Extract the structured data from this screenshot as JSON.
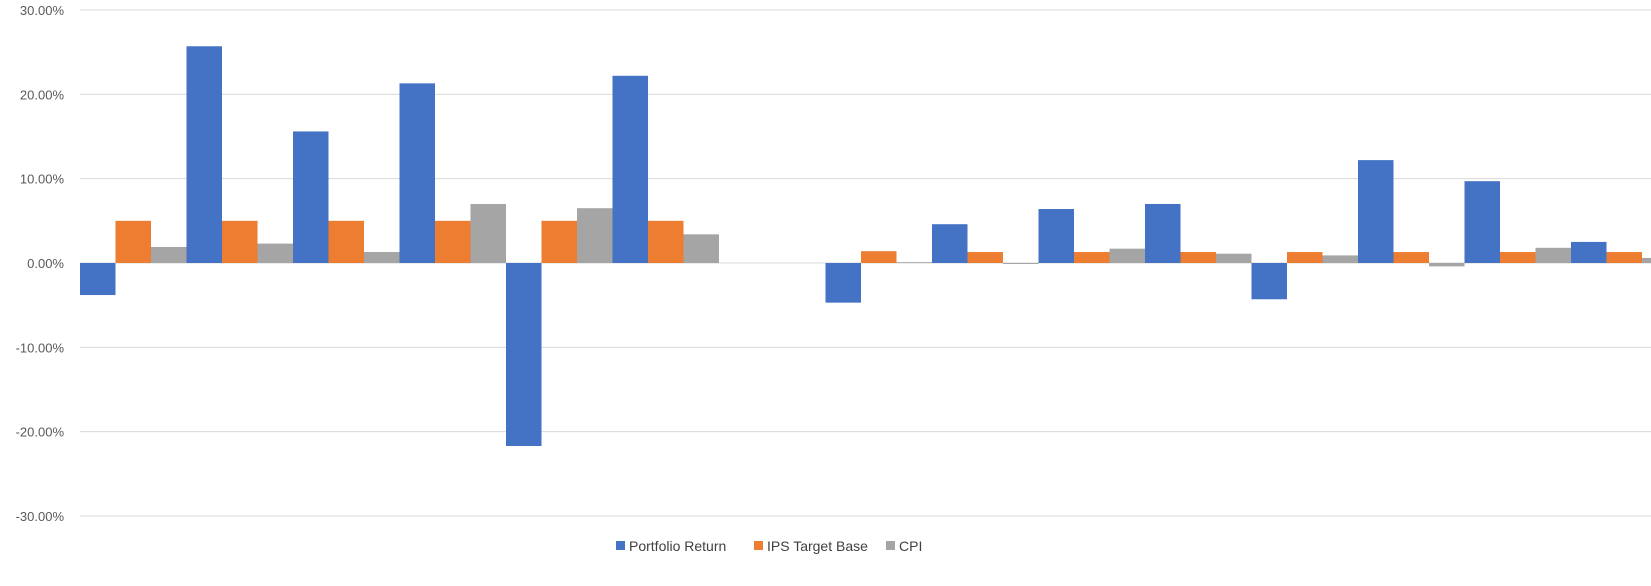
{
  "chart_data": {
    "type": "bar",
    "title": "",
    "xlabel": "",
    "ylabel": "",
    "ylim": [
      -0.3,
      0.3
    ],
    "yticks": [
      0.3,
      0.2,
      0.1,
      0.0,
      -0.1,
      -0.2,
      -0.3
    ],
    "ytick_labels": [
      "30.00%",
      "20.00%",
      "10.00%",
      "0.00%",
      "-10.00%",
      "-20.00%",
      "-30.00%"
    ],
    "grid": true,
    "legend_position": "bottom",
    "categories_count": 15,
    "series": [
      {
        "name": "Portfolio Return",
        "color": "#4472C4",
        "values": [
          -0.038,
          0.257,
          0.156,
          0.213,
          -0.217,
          0.222,
          null,
          -0.047,
          0.046,
          0.064,
          0.07,
          -0.043,
          0.122,
          0.097,
          0.025
        ]
      },
      {
        "name": "IPS Target Base",
        "color": "#ED7D31",
        "values": [
          0.05,
          0.05,
          0.05,
          0.05,
          0.05,
          0.05,
          null,
          0.014,
          0.013,
          0.013,
          0.013,
          0.013,
          0.013,
          0.013,
          0.013
        ]
      },
      {
        "name": "CPI",
        "color": "#A5A5A5",
        "values": [
          0.019,
          0.023,
          0.013,
          0.07,
          0.065,
          0.034,
          null,
          0.001,
          0.0,
          0.017,
          0.011,
          0.009,
          -0.004,
          0.018,
          0.006
        ]
      }
    ]
  }
}
